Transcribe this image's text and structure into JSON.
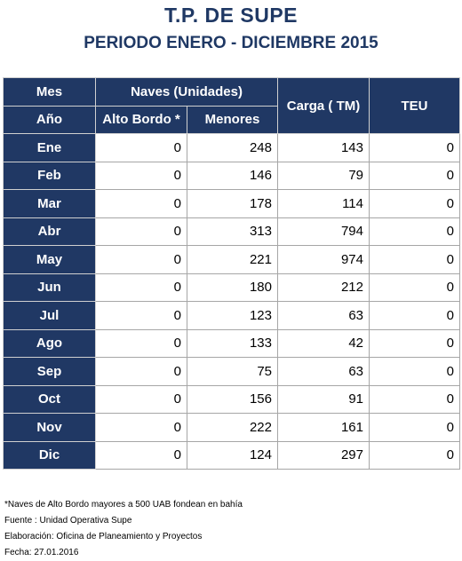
{
  "header": {
    "title": "T.P. DE SUPE",
    "subtitle": "PERIODO ENERO - DICIEMBRE 2015"
  },
  "table": {
    "headers": {
      "mes": "Mes",
      "ano": "Año",
      "naves": "Naves (Unidades)",
      "alto_bordo": "Alto Bordo *",
      "menores": "Menores",
      "carga": "Carga ( TM)",
      "teu": "TEU"
    },
    "rows": [
      [
        "Ene",
        0,
        248,
        143,
        0
      ],
      [
        "Feb",
        0,
        146,
        79,
        0
      ],
      [
        "Mar",
        0,
        178,
        114,
        0
      ],
      [
        "Abr",
        0,
        313,
        794,
        0
      ],
      [
        "May",
        0,
        221,
        974,
        0
      ],
      [
        "Jun",
        0,
        180,
        212,
        0
      ],
      [
        "Jul",
        0,
        123,
        63,
        0
      ],
      [
        "Ago",
        0,
        133,
        42,
        0
      ],
      [
        "Sep",
        0,
        75,
        63,
        0
      ],
      [
        "Oct",
        0,
        156,
        91,
        0
      ],
      [
        "Nov",
        0,
        222,
        161,
        0
      ],
      [
        "Dic",
        0,
        124,
        297,
        0
      ]
    ]
  },
  "notes": [
    "*Naves de Alto Bordo mayores a 500 UAB fondean en bahía",
    "Fuente : Unidad Operativa Supe",
    "Elaboración: Oficina de Planeamiento y Proyectos",
    "Fecha: 27.01.2016"
  ]
}
